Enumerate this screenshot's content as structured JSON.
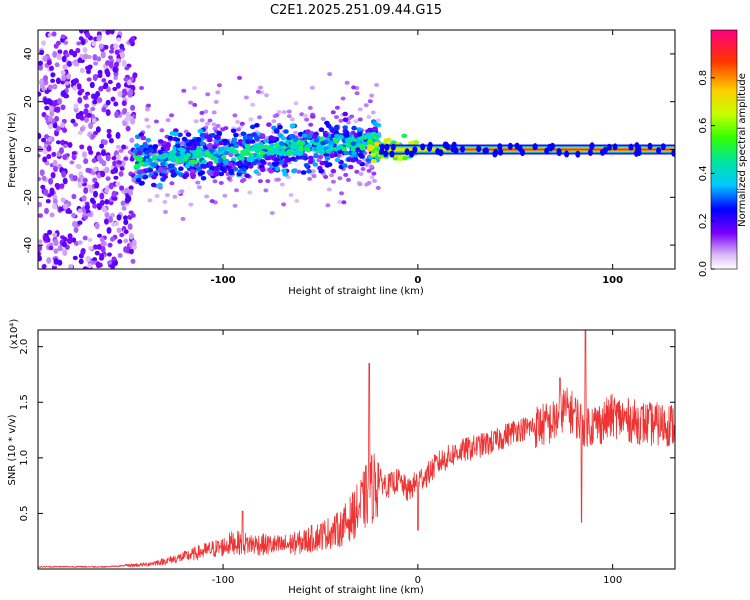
{
  "title": "C2E1.2025.251.09.44.G15",
  "chart_data": [
    {
      "type": "heatmap",
      "xlabel": "Height of straight line (km)",
      "ylabel": "Frequency (Hz)",
      "xlim": [
        -195,
        132
      ],
      "ylim": [
        -50,
        50
      ],
      "xticks": [
        -100,
        0,
        100
      ],
      "xtick_labels": [
        "-100",
        "0",
        "100"
      ],
      "yticks": [
        -40,
        -20,
        0,
        20,
        40
      ],
      "ytick_labels": [
        "-40",
        "-20",
        "0",
        "20",
        "40"
      ],
      "colorbar": {
        "label": "Normalized spectral amplitude",
        "range": [
          0,
          1
        ],
        "ticks": [
          0.0,
          0.2,
          0.4,
          0.6,
          0.8
        ],
        "tick_labels": [
          "0.0",
          "0.2",
          "0.4",
          "0.6",
          "0.8"
        ],
        "colormap": "rainbow (violet to red)"
      },
      "features": {
        "noise_region_km": [
          -195,
          -145
        ],
        "ionospheric_signal_km": [
          -145,
          -20
        ],
        "stable_tone_km": [
          -20,
          132
        ],
        "tone_frequency_hz": 0
      }
    },
    {
      "type": "line",
      "xlabel": "Height of straight line (km)",
      "ylabel": "SNR (10 * v/v)",
      "y_multiplier": "(x10⁴)",
      "xlim": [
        -195,
        132
      ],
      "ylim": [
        0,
        2.15
      ],
      "xticks": [
        -100,
        0,
        100
      ],
      "xtick_labels": [
        "-100",
        "0",
        "100"
      ],
      "yticks": [
        0.5,
        1.0,
        1.5,
        2.0
      ],
      "ytick_labels": [
        "0.5",
        "1.0",
        "1.5",
        "2.0"
      ],
      "series": [
        {
          "name": "SNR",
          "color": "#ee3333",
          "x": [
            -195,
            -160,
            -150,
            -140,
            -130,
            -120,
            -110,
            -100,
            -95,
            -90,
            -80,
            -70,
            -60,
            -50,
            -40,
            -35,
            -30,
            -25,
            -20,
            -15,
            -10,
            -5,
            0,
            5,
            10,
            20,
            30,
            40,
            50,
            60,
            70,
            75,
            80,
            85,
            90,
            95,
            100,
            110,
            120,
            132
          ],
          "values": [
            0.02,
            0.02,
            0.03,
            0.04,
            0.07,
            0.11,
            0.16,
            0.2,
            0.24,
            0.23,
            0.22,
            0.21,
            0.24,
            0.3,
            0.36,
            0.45,
            0.55,
            0.7,
            0.8,
            0.75,
            0.8,
            0.7,
            0.8,
            0.85,
            0.95,
            1.05,
            1.1,
            1.15,
            1.25,
            1.28,
            1.32,
            1.45,
            1.4,
            1.3,
            1.3,
            1.32,
            1.38,
            1.33,
            1.3,
            1.3
          ]
        }
      ],
      "spikes": [
        {
          "x": -25,
          "value": 1.85
        },
        {
          "x": -90,
          "value": 0.52
        },
        {
          "x": 73,
          "value": 1.72
        },
        {
          "x": 86,
          "value": 2.15
        },
        {
          "x": 84,
          "value": 0.42
        },
        {
          "x": 0,
          "value": 0.35
        }
      ]
    }
  ]
}
